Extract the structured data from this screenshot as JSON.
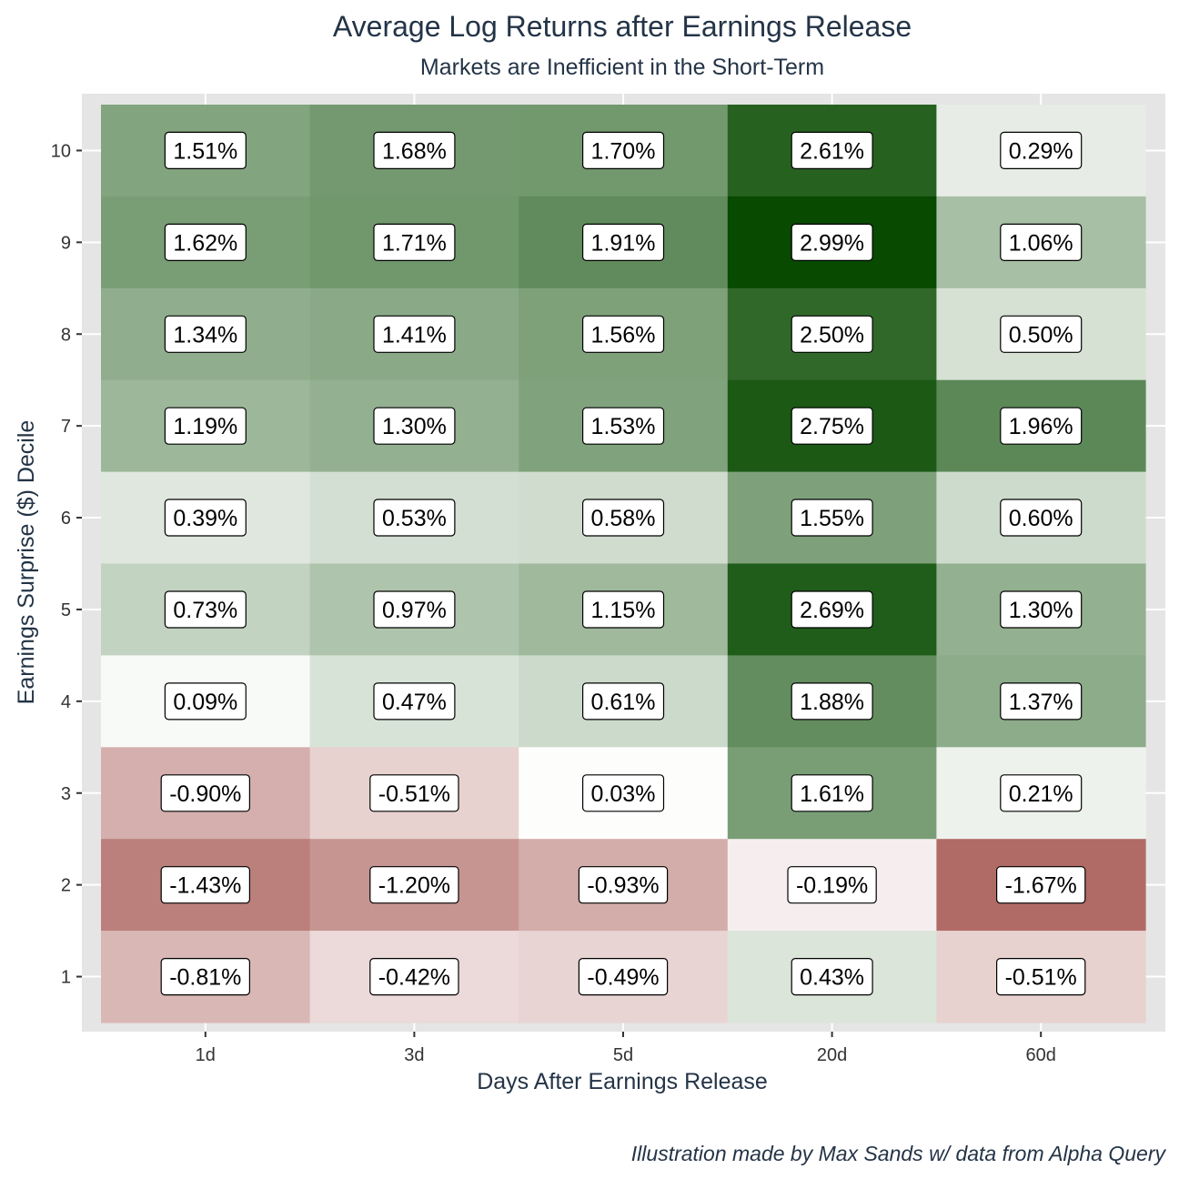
{
  "chart_data": {
    "type": "heatmap",
    "title": "Average Log Returns after Earnings Release",
    "subtitle": "Markets are Inefficient in the Short-Term",
    "xlabel": "Days After Earnings Release",
    "ylabel": "Earnings Surprise ($) Decile",
    "caption": "Illustration made by Max Sands w/ data from Alpha Query",
    "x_categories": [
      "1d",
      "3d",
      "5d",
      "20d",
      "60d"
    ],
    "y_categories": [
      "1",
      "2",
      "3",
      "4",
      "5",
      "6",
      "7",
      "8",
      "9",
      "10"
    ],
    "rows": [
      {
        "decile": "10",
        "values": [
          1.51,
          1.68,
          1.7,
          2.61,
          0.29
        ],
        "labels": [
          "1.51%",
          "1.68%",
          "1.70%",
          "2.61%",
          "0.29%"
        ]
      },
      {
        "decile": "9",
        "values": [
          1.62,
          1.71,
          1.91,
          2.99,
          1.06
        ],
        "labels": [
          "1.62%",
          "1.71%",
          "1.91%",
          "2.99%",
          "1.06%"
        ]
      },
      {
        "decile": "8",
        "values": [
          1.34,
          1.41,
          1.56,
          2.5,
          0.5
        ],
        "labels": [
          "1.34%",
          "1.41%",
          "1.56%",
          "2.50%",
          "0.50%"
        ]
      },
      {
        "decile": "7",
        "values": [
          1.19,
          1.3,
          1.53,
          2.75,
          1.96
        ],
        "labels": [
          "1.19%",
          "1.30%",
          "1.53%",
          "2.75%",
          "1.96%"
        ]
      },
      {
        "decile": "6",
        "values": [
          0.39,
          0.53,
          0.58,
          1.55,
          0.6
        ],
        "labels": [
          "0.39%",
          "0.53%",
          "0.58%",
          "1.55%",
          "0.60%"
        ]
      },
      {
        "decile": "5",
        "values": [
          0.73,
          0.97,
          1.15,
          2.69,
          1.3
        ],
        "labels": [
          "0.73%",
          "0.97%",
          "1.15%",
          "2.69%",
          "1.30%"
        ]
      },
      {
        "decile": "4",
        "values": [
          0.09,
          0.47,
          0.61,
          1.88,
          1.37
        ],
        "labels": [
          "0.09%",
          "0.47%",
          "0.61%",
          "1.88%",
          "1.37%"
        ]
      },
      {
        "decile": "3",
        "values": [
          -0.9,
          -0.51,
          0.03,
          1.61,
          0.21
        ],
        "labels": [
          "-0.90%",
          "-0.51%",
          "0.03%",
          "1.61%",
          "0.21%"
        ]
      },
      {
        "decile": "2",
        "values": [
          -1.43,
          -1.2,
          -0.93,
          -0.19,
          -1.67
        ],
        "labels": [
          "-1.43%",
          "-1.20%",
          "-0.93%",
          "-0.19%",
          "-1.67%"
        ]
      },
      {
        "decile": "1",
        "values": [
          -0.81,
          -0.42,
          -0.49,
          0.43,
          -0.51
        ],
        "labels": [
          "-0.81%",
          "-0.42%",
          "-0.49%",
          "0.43%",
          "-0.51%"
        ]
      }
    ],
    "color_scale": {
      "low": "#b06b66",
      "mid": "#ffffff",
      "high": "#074a00",
      "low_value": -1.67,
      "high_value": 2.99
    },
    "panel_background": "#e5e5e5",
    "grid": true
  }
}
